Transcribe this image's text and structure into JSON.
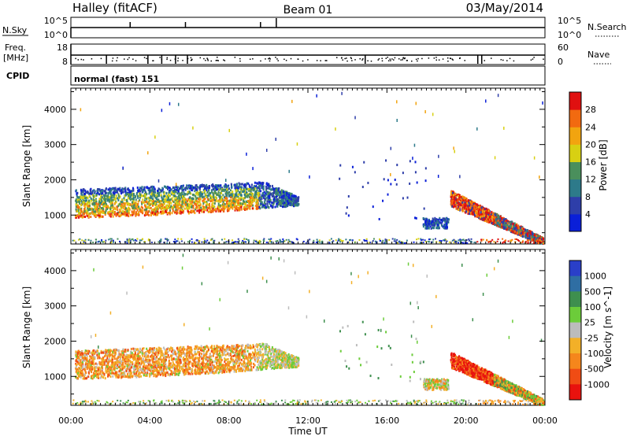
{
  "header": {
    "left": "Halley (fitACF)",
    "center": "Beam 01",
    "right": "03/May/2014"
  },
  "noise_panel": {
    "left_label": "N.Sky",
    "right_label": "N.Search",
    "left_ticks": [
      "10^5",
      "10^0"
    ],
    "right_ticks": [
      "10^5",
      "10^0"
    ]
  },
  "freq_panel": {
    "left_label_1": "Freq.",
    "left_label_2": "[MHz]",
    "right_label": "Nave",
    "left_ticks": [
      "18",
      "8"
    ],
    "right_ticks": [
      "60",
      "0"
    ]
  },
  "cpid_panel": {
    "label": "CPID",
    "text": "normal (fast) 151"
  },
  "chart_data": [
    {
      "type": "heatmap",
      "title": "",
      "ylabel": "Slant Range [km]",
      "xlabel": "",
      "y_ticks": [
        "1000",
        "2000",
        "3000",
        "4000"
      ],
      "ylim": [
        180,
        4600
      ],
      "colorbar": {
        "label": "Power [dB]",
        "ticks": [
          "4",
          "8",
          "12",
          "16",
          "20",
          "24",
          "28"
        ],
        "colors": [
          "#0a1fd8",
          "#2e3ea9",
          "#2d7a8a",
          "#4a8f5c",
          "#d8d012",
          "#f2a40f",
          "#f26a10",
          "#e01010"
        ]
      }
    },
    {
      "type": "heatmap",
      "title": "",
      "ylabel": "Slant Range [km]",
      "xlabel": "Time UT",
      "y_ticks": [
        "1000",
        "2000",
        "3000",
        "4000"
      ],
      "ylim": [
        180,
        4600
      ],
      "colorbar": {
        "label": "Velocity [m s^-1]",
        "ticks": [
          "1000",
          "500",
          "100",
          "25",
          "-25",
          "-100",
          "-500",
          "-1000"
        ],
        "colors": [
          "#2a3fc8",
          "#2f6ea3",
          "#3e8f4e",
          "#6ccc3a",
          "#bcbcbc",
          "#f3b028",
          "#f5861c",
          "#f04c14",
          "#e8120e"
        ]
      }
    }
  ],
  "x_axis": {
    "label": "Time UT",
    "ticks": [
      "00:00",
      "04:00",
      "08:00",
      "12:00",
      "16:00",
      "20:00",
      "00:00"
    ]
  }
}
